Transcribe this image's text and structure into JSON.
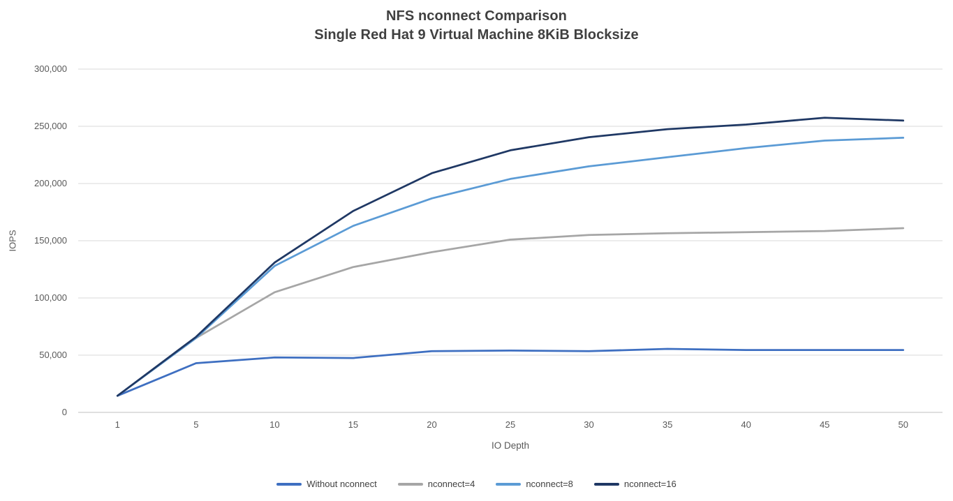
{
  "title": {
    "line1": "NFS nconnect Comparison",
    "line2": "Single Red Hat 9 Virtual Machine 8KiB Blocksize"
  },
  "chart_data": {
    "type": "line",
    "title": "NFS nconnect Comparison Single Red Hat 9 Virtual Machine 8KiB Blocksize",
    "xlabel": "IO Depth",
    "ylabel": "IOPS",
    "x": [
      1,
      5,
      10,
      15,
      20,
      25,
      30,
      35,
      40,
      45,
      50
    ],
    "ylim": [
      0,
      300000
    ],
    "ytick_step": 50000,
    "ytick_labels": [
      "0",
      "50,000",
      "100,000",
      "150,000",
      "200,000",
      "250,000",
      "300,000"
    ],
    "grid": true,
    "legend_position": "bottom",
    "colors": {
      "grid": "#D9D9D9",
      "axis": "#BFBFBF"
    },
    "series": [
      {
        "name": "Without nconnect",
        "color": "#3E6FC1",
        "values": [
          14500,
          43000,
          48000,
          47500,
          53500,
          54000,
          53500,
          55500,
          54500,
          54500,
          54500
        ]
      },
      {
        "name": "nconnect=4",
        "color": "#A6A6A6",
        "values": [
          14500,
          65000,
          105000,
          127000,
          140000,
          151000,
          155000,
          156500,
          157500,
          158500,
          161000
        ]
      },
      {
        "name": "nconnect=8",
        "color": "#5B9BD5",
        "values": [
          14500,
          65000,
          128000,
          163000,
          187000,
          204000,
          215000,
          223000,
          231000,
          237500,
          240000
        ]
      },
      {
        "name": "nconnect=16",
        "color": "#1F3864",
        "values": [
          14500,
          66000,
          131000,
          176000,
          209000,
          229000,
          240500,
          247500,
          251500,
          257500,
          255000
        ]
      }
    ]
  }
}
